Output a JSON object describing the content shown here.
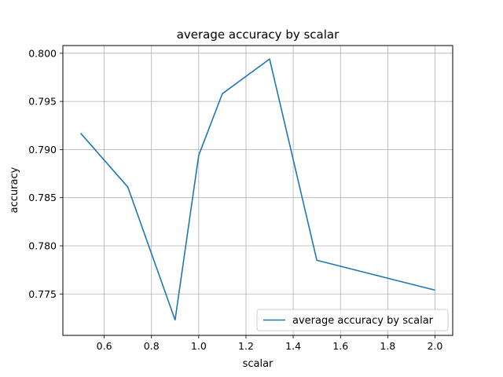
{
  "chart_data": {
    "type": "line",
    "title": "average accuracy by scalar",
    "xlabel": "scalar",
    "ylabel": "accuracy",
    "xlim": [
      0.425,
      2.075
    ],
    "ylim": [
      0.7707,
      0.8008
    ],
    "xticks": [
      0.6,
      0.8,
      1.0,
      1.2,
      1.4,
      1.6,
      1.8,
      2.0
    ],
    "xtick_labels": [
      "0.6",
      "0.8",
      "1.0",
      "1.2",
      "1.4",
      "1.6",
      "1.8",
      "2.0"
    ],
    "yticks": [
      0.775,
      0.78,
      0.785,
      0.79,
      0.795,
      0.8
    ],
    "ytick_labels": [
      "0.775",
      "0.780",
      "0.785",
      "0.790",
      "0.795",
      "0.800"
    ],
    "grid": true,
    "legend": "lower right",
    "series": [
      {
        "name": "average accuracy by scalar",
        "color": "#1f77b4",
        "x": [
          0.5,
          0.7,
          0.9,
          1.0,
          1.1,
          1.3,
          1.5,
          2.0
        ],
        "y": [
          0.7917,
          0.7861,
          0.7723,
          0.7894,
          0.7958,
          0.7994,
          0.7785,
          0.7754
        ]
      }
    ]
  }
}
